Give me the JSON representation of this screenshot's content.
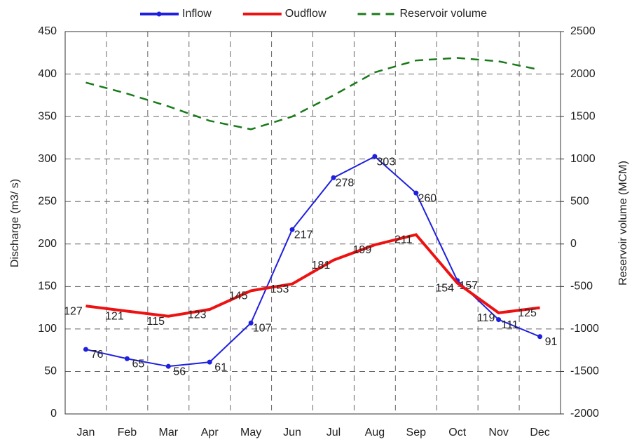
{
  "chart_data": {
    "type": "line",
    "categories": [
      "Jan",
      "Feb",
      "Mar",
      "Apr",
      "May",
      "Jun",
      "Jul",
      "Aug",
      "Sep",
      "Oct",
      "Nov",
      "Dec"
    ],
    "series": [
      {
        "name": "Inflow",
        "color": "#1f1fe0",
        "markers": true,
        "values": [
          76,
          65,
          56,
          61,
          107,
          217,
          278,
          303,
          260,
          157,
          111,
          91
        ]
      },
      {
        "name": "Oudflow",
        "color": "#ee1111",
        "values": [
          127,
          121,
          115,
          123,
          145,
          153,
          181,
          199,
          211,
          154,
          119,
          125
        ]
      },
      {
        "name": "Reservoir volume",
        "color": "#1a7a1a",
        "dashed": true,
        "axis": "y2",
        "values": [
          1900,
          1770,
          1620,
          1450,
          1350,
          1500,
          1750,
          2020,
          2160,
          2190,
          2150,
          2050
        ]
      }
    ],
    "ylabel": "Discharge (m3/ s)",
    "y2label": "Reservoir volume (MCM)",
    "ylim": [
      0,
      450
    ],
    "yticks": [
      0,
      50,
      100,
      150,
      200,
      250,
      300,
      350,
      400,
      450
    ],
    "y2lim": [
      -2000,
      2500
    ],
    "y2ticks": [
      -2000,
      -1500,
      -1000,
      -500,
      0,
      500,
      1000,
      1500,
      2000,
      2500
    ],
    "grid": true,
    "legend": "top"
  }
}
